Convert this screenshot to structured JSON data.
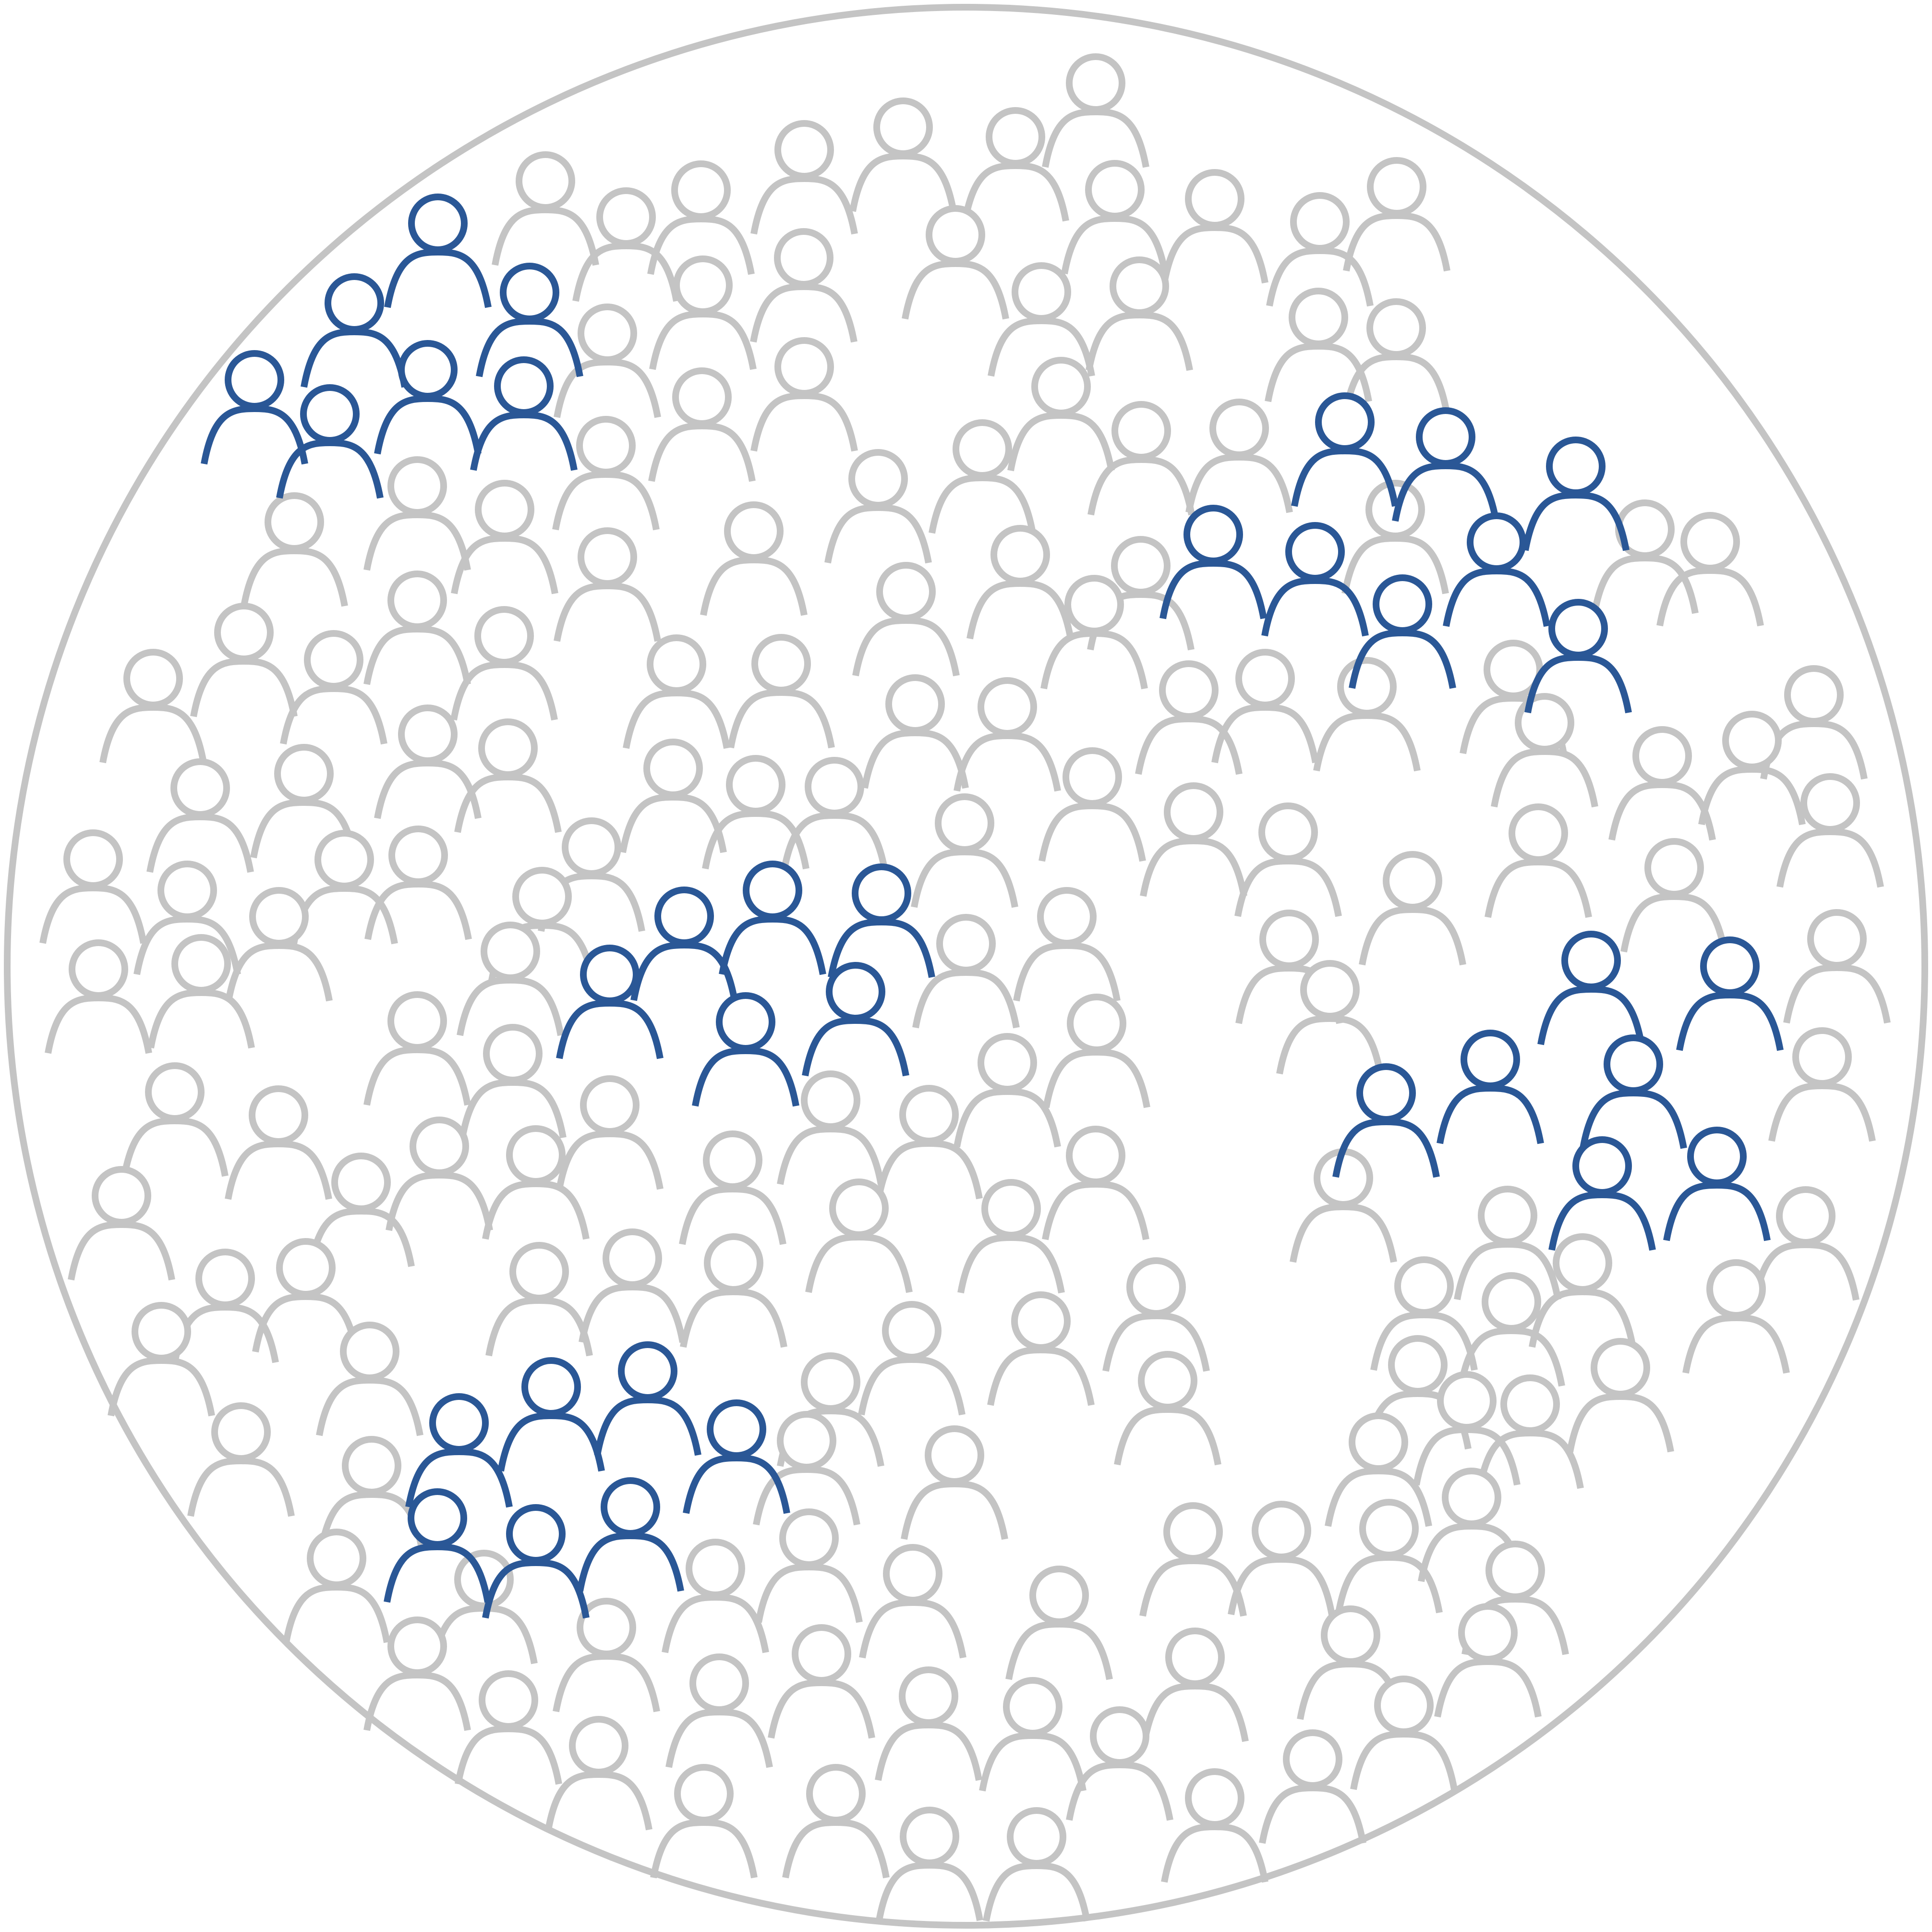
{
  "colors": {
    "background": "#ffffff",
    "boundary": "#c4c4c4",
    "person_default": "#c4c4c4",
    "person_highlight": "#2a5796"
  },
  "icon": "person-outline-icon",
  "figure": {
    "total_people_approx": 270,
    "highlighted_people": 32,
    "highlight_clusters": 5
  }
}
